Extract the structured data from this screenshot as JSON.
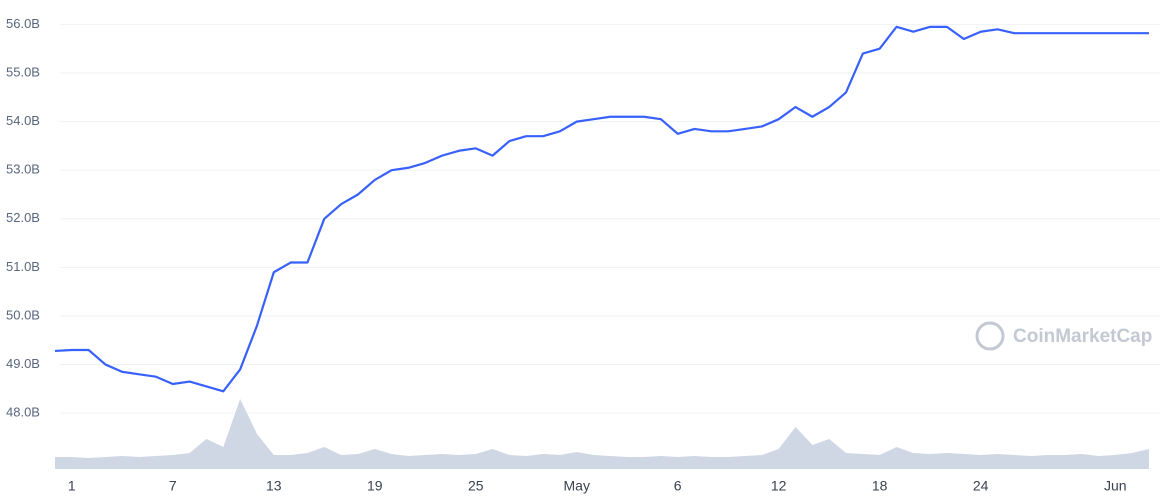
{
  "chart_data": {
    "type": "line",
    "watermark": "CoinMarketCap",
    "categories": [
      null,
      "1",
      null,
      null,
      null,
      null,
      null,
      "7",
      null,
      null,
      null,
      null,
      null,
      "13",
      null,
      null,
      null,
      null,
      null,
      "19",
      null,
      null,
      null,
      null,
      null,
      "25",
      null,
      null,
      null,
      null,
      null,
      "May",
      null,
      null,
      null,
      null,
      null,
      "6",
      null,
      null,
      null,
      null,
      null,
      "12",
      null,
      null,
      null,
      null,
      null,
      "18",
      null,
      null,
      null,
      null,
      null,
      "24",
      null,
      null,
      null,
      null,
      null,
      null,
      null,
      "Jun",
      null,
      null
    ],
    "series": [
      {
        "color": "#3861fb",
        "values": [
          49.28,
          49.3,
          49.3,
          49.0,
          48.85,
          48.8,
          48.75,
          48.6,
          48.65,
          48.55,
          48.45,
          48.9,
          49.8,
          50.9,
          51.1,
          51.1,
          52.0,
          52.3,
          52.5,
          52.8,
          53.0,
          53.05,
          53.15,
          53.3,
          53.4,
          53.45,
          53.3,
          53.6,
          53.7,
          53.7,
          53.8,
          54.0,
          54.05,
          54.1,
          54.1,
          54.1,
          54.05,
          53.75,
          53.85,
          53.8,
          53.8,
          53.85,
          53.9,
          54.05,
          54.3,
          54.1,
          54.3,
          54.6,
          55.4,
          55.5,
          55.95,
          55.85,
          55.95,
          55.95,
          55.7,
          55.85,
          55.9,
          55.82,
          55.82,
          55.82,
          55.82,
          55.82,
          55.82,
          55.82,
          55.82,
          55.82
        ]
      }
    ],
    "volume": {
      "color": "#cfd6e4",
      "ylim": [
        0,
        100
      ],
      "values": [
        12,
        12,
        11,
        12,
        13,
        12,
        13,
        14,
        16,
        30,
        22,
        70,
        35,
        14,
        14,
        16,
        22,
        14,
        15,
        20,
        15,
        13,
        14,
        15,
        14,
        15,
        20,
        14,
        13,
        15,
        14,
        17,
        14,
        13,
        12,
        12,
        13,
        12,
        13,
        12,
        12,
        13,
        14,
        20,
        42,
        24,
        30,
        16,
        15,
        14,
        22,
        16,
        15,
        16,
        15,
        14,
        15,
        14,
        13,
        14,
        14,
        15,
        13,
        14,
        16,
        20
      ]
    },
    "ylim": [
      46.83,
      56.4
    ],
    "yticks": [
      {
        "value": 48,
        "label": "48.0B"
      },
      {
        "value": 49,
        "label": "49.0B"
      },
      {
        "value": 50,
        "label": "50.0B"
      },
      {
        "value": 51,
        "label": "51.0B"
      },
      {
        "value": 52,
        "label": "52.0B"
      },
      {
        "value": 53,
        "label": "53.0B"
      },
      {
        "value": 54,
        "label": "54.0B"
      },
      {
        "value": 55,
        "label": "55.0B"
      },
      {
        "value": 56,
        "label": "56.0B"
      }
    ],
    "grid": true
  }
}
